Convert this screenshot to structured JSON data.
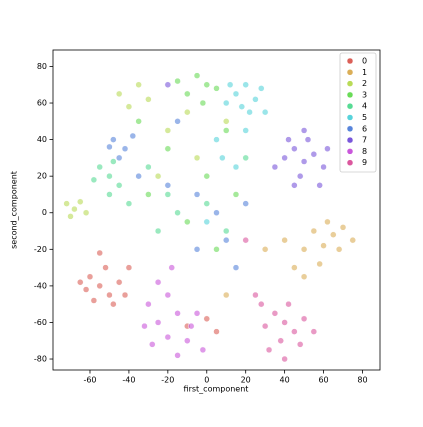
{
  "chart_data": {
    "type": "scatter",
    "x_label": "first_component",
    "y_label": "second_component",
    "xlim": [
      -79,
      89
    ],
    "ylim": [
      -86,
      89
    ],
    "xticks": [
      -60,
      -40,
      -20,
      0,
      20,
      40,
      60,
      80
    ],
    "yticks": [
      -80,
      -60,
      -40,
      -20,
      0,
      20,
      40,
      60,
      80
    ],
    "grid": false,
    "legend": "upper right",
    "series": [
      {
        "name": "0",
        "color": "#db5f57",
        "x": [
          -60,
          -55,
          -50,
          -45,
          -62,
          -52,
          -48,
          -58,
          -42,
          -55,
          -65,
          -40,
          -10,
          5,
          0
        ],
        "y": [
          -35,
          -40,
          -45,
          -38,
          -42,
          -30,
          -50,
          -48,
          -45,
          -22,
          -38,
          -30,
          -62,
          -65,
          -58
        ]
      },
      {
        "name": "1",
        "color": "#dbae57",
        "x": [
          50,
          55,
          60,
          65,
          70,
          58,
          45,
          68,
          75,
          40,
          62,
          50,
          10,
          30
        ],
        "y": [
          -20,
          -10,
          -18,
          -12,
          -8,
          -28,
          -30,
          -20,
          -15,
          -15,
          -5,
          -35,
          -45,
          -20
        ]
      },
      {
        "name": "2",
        "color": "#b9db57",
        "x": [
          -72,
          -68,
          -65,
          -70,
          -62,
          -45,
          -40,
          -35,
          -30,
          -20,
          -5,
          -25,
          10,
          -10
        ],
        "y": [
          5,
          2,
          6,
          -2,
          0,
          65,
          58,
          70,
          62,
          45,
          30,
          20,
          50,
          55
        ]
      },
      {
        "name": "3",
        "color": "#69db57",
        "x": [
          -5,
          0,
          -10,
          5,
          -15,
          -2,
          10,
          -20,
          0,
          -30,
          15,
          -10,
          5,
          -35
        ],
        "y": [
          75,
          70,
          65,
          68,
          72,
          60,
          45,
          35,
          20,
          10,
          10,
          -5,
          -20,
          50
        ]
      },
      {
        "name": "4",
        "color": "#57db94",
        "x": [
          -55,
          -50,
          -48,
          -58,
          -45,
          -40,
          -30,
          -20,
          -15,
          0,
          10,
          -25,
          20,
          -50
        ],
        "y": [
          25,
          20,
          28,
          18,
          15,
          5,
          25,
          10,
          0,
          5,
          -10,
          -10,
          30,
          10
        ]
      },
      {
        "name": "5",
        "color": "#57d3db",
        "x": [
          15,
          20,
          25,
          18,
          12,
          22,
          28,
          10,
          20,
          5,
          15,
          0,
          30,
          8
        ],
        "y": [
          65,
          70,
          62,
          58,
          70,
          55,
          68,
          60,
          45,
          40,
          25,
          -5,
          55,
          30
        ]
      },
      {
        "name": "6",
        "color": "#5784db",
        "x": [
          -48,
          -42,
          -45,
          -38,
          -50,
          -35,
          -20,
          -5,
          5,
          10,
          -5,
          15,
          -15,
          20
        ],
        "y": [
          40,
          35,
          30,
          42,
          36,
          20,
          15,
          10,
          0,
          -15,
          -20,
          -30,
          50,
          5
        ]
      },
      {
        "name": "7",
        "color": "#7957db",
        "x": [
          40,
          45,
          50,
          55,
          48,
          60,
          42,
          52,
          58,
          45,
          35,
          62,
          50,
          -20
        ],
        "y": [
          30,
          35,
          28,
          32,
          20,
          25,
          40,
          40,
          15,
          15,
          25,
          35,
          45,
          70
        ]
      },
      {
        "name": "8",
        "color": "#c957db",
        "x": [
          -25,
          -20,
          -15,
          -28,
          -10,
          -30,
          -20,
          -5,
          -25,
          -15,
          -32,
          -8,
          -2,
          -18
        ],
        "y": [
          -60,
          -68,
          -55,
          -72,
          -70,
          -50,
          -45,
          -55,
          -38,
          -78,
          -62,
          -62,
          -75,
          -30
        ]
      },
      {
        "name": "9",
        "color": "#db579e",
        "x": [
          35,
          40,
          45,
          38,
          30,
          42,
          50,
          32,
          48,
          28,
          55,
          25,
          20,
          40
        ],
        "y": [
          -55,
          -60,
          -65,
          -70,
          -62,
          -50,
          -58,
          -75,
          -72,
          -50,
          -65,
          -45,
          -15,
          -80
        ]
      }
    ]
  }
}
